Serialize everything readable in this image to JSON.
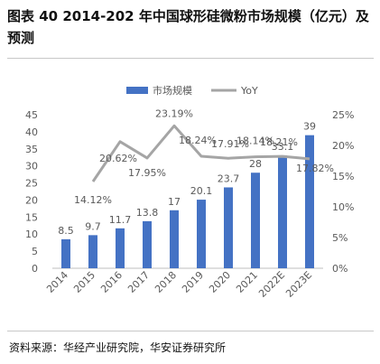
{
  "title": "图表 40 2014-202 年中国球形硅微粉市场规模（亿元）及预测",
  "source": "资料来源：华经产业研究院，华安证券研究所",
  "colors": {
    "bar": "#4472c4",
    "line": "#a5a5a5",
    "axis_text": "#595959",
    "grid": "#d9d9d9"
  },
  "chart_data": {
    "type": "bar",
    "categories": [
      "2014",
      "2015",
      "2016",
      "2017",
      "2018",
      "2019",
      "2020",
      "2021",
      "2022E",
      "2023E"
    ],
    "series": [
      {
        "name": "市场规模",
        "type": "bar",
        "axis": "left",
        "values": [
          8.5,
          9.7,
          11.7,
          13.8,
          17,
          20.1,
          23.7,
          28,
          33.1,
          39
        ],
        "labels": [
          "8.5",
          "9.7",
          "11.7",
          "13.8",
          "17",
          "20.1",
          "23.7",
          "28",
          "33.1",
          "39"
        ]
      },
      {
        "name": "YoY",
        "type": "line",
        "axis": "right",
        "values": [
          null,
          14.12,
          20.62,
          17.95,
          23.19,
          18.24,
          17.91,
          18.14,
          18.21,
          17.82
        ],
        "labels": [
          "",
          "14.12%",
          "20.62%",
          "17.95%",
          "23.19%",
          "18.24%",
          "17.91%",
          "18.14%",
          "18.21%",
          "17.82%"
        ]
      }
    ],
    "ylim_left": [
      0,
      45
    ],
    "yticks_left": [
      "0",
      "5",
      "10",
      "15",
      "20",
      "25",
      "30",
      "35",
      "40",
      "45"
    ],
    "ylim_right": [
      0,
      25
    ],
    "yticks_right": [
      "0%",
      "5%",
      "10%",
      "15%",
      "20%",
      "25%"
    ],
    "legend_position": "top-center",
    "grid": false
  }
}
